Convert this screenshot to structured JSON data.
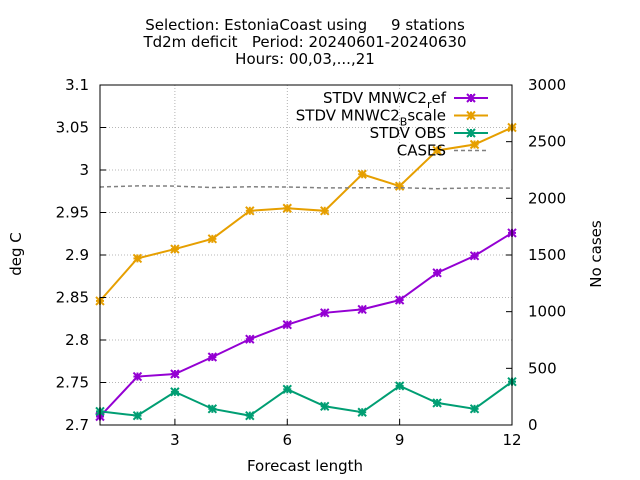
{
  "chart_data": {
    "type": "line",
    "title_lines": [
      "Selection: EstoniaCoast using     9 stations",
      "Td2m deficit   Period: 20240601-20240630",
      "Hours: 00,03,...,21"
    ],
    "xlabel": "Forecast length",
    "ylabel": "deg C",
    "y2label": "No cases",
    "xlim": [
      1,
      12
    ],
    "ylim": [
      2.7,
      3.1
    ],
    "y2lim": [
      0,
      3000
    ],
    "xticks": [
      3,
      6,
      9,
      12
    ],
    "yticks": [
      2.7,
      2.75,
      2.8,
      2.85,
      2.9,
      2.95,
      3.0,
      3.05,
      3.1
    ],
    "ytick_labels": [
      "2.7",
      "2.75",
      "2.8",
      "2.85",
      "2.9",
      "2.95",
      "3",
      "3.05",
      "3.1"
    ],
    "y2ticks": [
      0,
      500,
      1000,
      1500,
      2000,
      2500,
      3000
    ],
    "grid": true,
    "legend_placement": "top-right",
    "x": [
      1,
      2,
      3,
      4,
      5,
      6,
      7,
      8,
      9,
      10,
      11,
      12
    ],
    "series": [
      {
        "name": "STDV MNWC2_ref",
        "legend_parts": [
          "STDV MNWC2",
          "r",
          "ef"
        ],
        "color": "#9400d3",
        "axis": "y1",
        "style": "line-points",
        "values": [
          2.71,
          2.757,
          2.76,
          2.78,
          2.801,
          2.818,
          2.832,
          2.836,
          2.847,
          2.879,
          2.899,
          2.926
        ]
      },
      {
        "name": "STDV MNWC2_Bscale",
        "legend_parts": [
          "STDV MNWC2",
          "B",
          "scale"
        ],
        "color": "#e69f00",
        "axis": "y1",
        "style": "line-points",
        "values": [
          2.846,
          2.896,
          2.907,
          2.919,
          2.952,
          2.955,
          2.952,
          2.995,
          2.981,
          3.023,
          3.03,
          3.05
        ]
      },
      {
        "name": "STDV OBS",
        "legend_parts": [
          "STDV OBS",
          "",
          ""
        ],
        "color": "#009e73",
        "axis": "y1",
        "style": "line-points",
        "values": [
          2.716,
          2.711,
          2.739,
          2.719,
          2.711,
          2.742,
          2.722,
          2.715,
          2.746,
          2.726,
          2.719,
          2.751
        ]
      },
      {
        "name": "CASES",
        "legend_parts": [
          "CASES",
          "",
          ""
        ],
        "color": "#808080",
        "axis": "y2",
        "style": "dashed",
        "values": [
          2100,
          2110,
          2108,
          2095,
          2102,
          2100,
          2092,
          2093,
          2094,
          2085,
          2092,
          2090
        ]
      }
    ]
  }
}
